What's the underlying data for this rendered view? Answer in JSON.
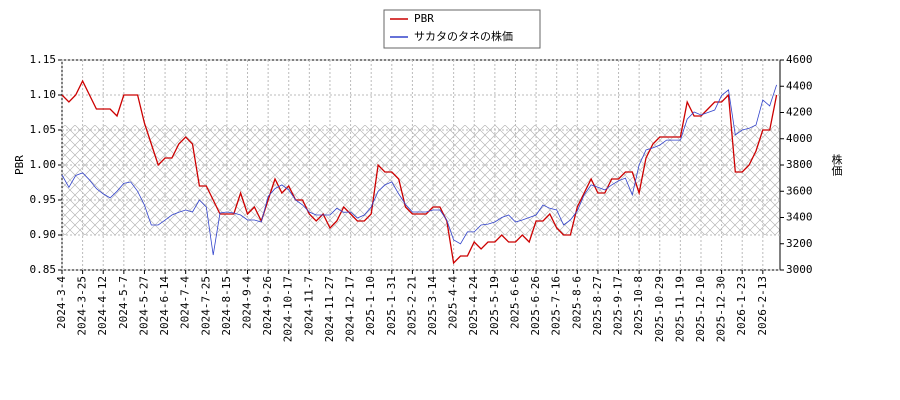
{
  "chart_data": {
    "type": "line",
    "y_label": "PBR",
    "y2_label": "株価",
    "categories": [
      "2024-3-4",
      null,
      null,
      "2024-3-25",
      null,
      null,
      "2024-4-12",
      null,
      null,
      "2024-5-7",
      null,
      null,
      "2024-5-27",
      null,
      null,
      "2024-6-14",
      null,
      null,
      "2024-7-4",
      null,
      null,
      "2024-7-25",
      null,
      null,
      "2024-8-15",
      null,
      null,
      "2024-9-4",
      null,
      null,
      "2024-9-26",
      null,
      null,
      "2024-10-17",
      null,
      null,
      "2024-11-7",
      null,
      null,
      "2024-11-27",
      null,
      null,
      "2024-12-17",
      null,
      null,
      "2025-1-10",
      null,
      null,
      "2025-1-31",
      null,
      null,
      "2025-2-21",
      null,
      null,
      "2025-3-14",
      null,
      null,
      "2025-4-4",
      null,
      null,
      "2025-4-24",
      null,
      null,
      "2025-5-19",
      null,
      null,
      "2025-6-6",
      null,
      null,
      "2025-6-26",
      null,
      null,
      "2025-7-16",
      null,
      null,
      "2025-8-6",
      null,
      null,
      "2025-8-27",
      null,
      null,
      "2025-9-17",
      null,
      null,
      "2025-10-8",
      null,
      null,
      "2025-10-29",
      null,
      null,
      "2025-11-19",
      null,
      null,
      "2025-12-10",
      null,
      null,
      "2025-12-30",
      null,
      null,
      "2026-1-23",
      null,
      null,
      "2026-2-13",
      null,
      null
    ],
    "series": [
      {
        "name": "PBR",
        "color": "#cc0000",
        "values": [
          1.1,
          1.09,
          1.1,
          1.12,
          1.1,
          1.08,
          1.08,
          1.08,
          1.07,
          1.1,
          1.1,
          1.1,
          1.06,
          1.03,
          1.0,
          1.01,
          1.01,
          1.03,
          1.04,
          1.03,
          0.97,
          0.97,
          0.95,
          0.93,
          0.93,
          0.93,
          0.96,
          0.93,
          0.94,
          0.92,
          0.95,
          0.98,
          0.96,
          0.97,
          0.95,
          0.95,
          0.93,
          0.92,
          0.93,
          0.91,
          0.92,
          0.94,
          0.93,
          0.92,
          0.92,
          0.93,
          1.0,
          0.99,
          0.99,
          0.98,
          0.94,
          0.93,
          0.93,
          0.93,
          0.94,
          0.94,
          0.92,
          0.86,
          0.87,
          0.87,
          0.89,
          0.88,
          0.89,
          0.89,
          0.9,
          0.89,
          0.89,
          0.9,
          0.89,
          0.92,
          0.92,
          0.93,
          0.91,
          0.9,
          0.9,
          0.94,
          0.96,
          0.98,
          0.96,
          0.96,
          0.98,
          0.98,
          0.99,
          0.99,
          0.96,
          1.01,
          1.03,
          1.04,
          1.04,
          1.04,
          1.04,
          1.09,
          1.07,
          1.07,
          1.08,
          1.09,
          1.09,
          1.1,
          0.99,
          0.99,
          1.0,
          1.02,
          1.05,
          1.05,
          1.1
        ]
      },
      {
        "name": "サカタのタネの株価",
        "color": "#3344cc",
        "axis": "y2",
        "values": [
          3724,
          3630,
          3720,
          3740,
          3686,
          3620,
          3580,
          3549,
          3600,
          3660,
          3671,
          3600,
          3495,
          3343,
          3343,
          3380,
          3419,
          3440,
          3457,
          3442,
          3533,
          3480,
          3114,
          3434,
          3442,
          3434,
          3419,
          3381,
          3381,
          3366,
          3560,
          3620,
          3648,
          3610,
          3533,
          3496,
          3442,
          3419,
          3419,
          3419,
          3470,
          3440,
          3442,
          3396,
          3419,
          3480,
          3600,
          3648,
          3671,
          3580,
          3500,
          3442,
          3442,
          3442,
          3457,
          3457,
          3380,
          3229,
          3200,
          3290,
          3290,
          3343,
          3350,
          3366,
          3400,
          3419,
          3366,
          3381,
          3400,
          3419,
          3495,
          3470,
          3457,
          3343,
          3381,
          3450,
          3572,
          3648,
          3630,
          3610,
          3648,
          3680,
          3700,
          3572,
          3800,
          3914,
          3930,
          3952,
          3990,
          3990,
          3990,
          4150,
          4204,
          4181,
          4200,
          4219,
          4330,
          4372,
          4029,
          4067,
          4080,
          4105,
          4295,
          4250,
          4410
        ]
      }
    ],
    "ylim": [
      0.85,
      1.15
    ],
    "yticks": [
      0.85,
      {
        "value": 0.9,
        "label": "0.90"
      },
      0.95,
      {
        "value": 1.0,
        "label": "1.00"
      },
      1.05,
      {
        "value": 1.1,
        "label": "1.10"
      },
      1.15
    ],
    "y2lim": [
      3000,
      4600
    ],
    "y2ticks": [
      3000,
      3200,
      3400,
      3600,
      3800,
      4000,
      4200,
      4400,
      4600
    ],
    "grid": true,
    "legend": "top"
  }
}
